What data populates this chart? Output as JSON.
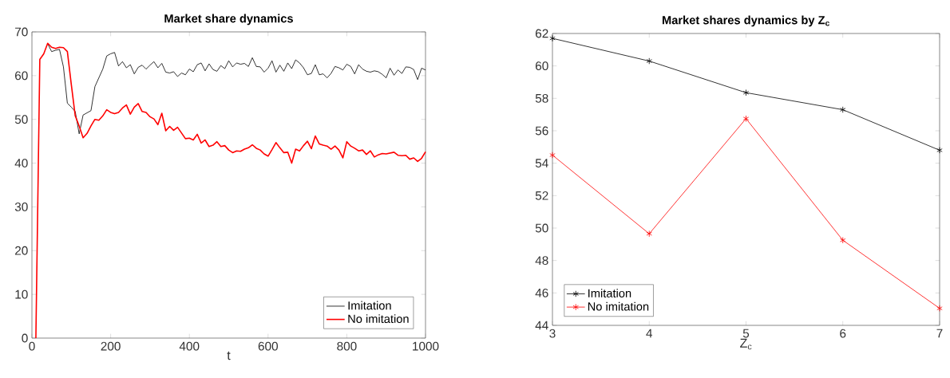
{
  "chart_data": [
    {
      "type": "line",
      "title": "Market share dynamics",
      "xlabel": "t",
      "xlim": [
        0,
        1000
      ],
      "ylim": [
        0,
        70
      ],
      "xticks": [
        0,
        200,
        400,
        600,
        800,
        1000
      ],
      "yticks": [
        0,
        10,
        20,
        30,
        40,
        50,
        60,
        70
      ],
      "legend": "bottom right",
      "marker": "none",
      "grid": false,
      "series": [
        {
          "name": "Imitation",
          "color": "#000000",
          "x": [
            40,
            50,
            60,
            70,
            80,
            90,
            100,
            110,
            120,
            130,
            150,
            160,
            180,
            190,
            200,
            210,
            220,
            230,
            240,
            250,
            260,
            270,
            280,
            290,
            300,
            310,
            320,
            330,
            340,
            350,
            360,
            370,
            380,
            390,
            400,
            410,
            420,
            430,
            440,
            450,
            460,
            470,
            480,
            490,
            500,
            510,
            520,
            530,
            540,
            550,
            560,
            570,
            580,
            590,
            600,
            610,
            620,
            630,
            640,
            650,
            660,
            670,
            680,
            690,
            700,
            710,
            720,
            730,
            740,
            750,
            760,
            770,
            780,
            790,
            800,
            810,
            820,
            830,
            840,
            850,
            860,
            870,
            880,
            890,
            900,
            910,
            920,
            930,
            940,
            950,
            960,
            970,
            980,
            990,
            1000
          ],
          "values": [
            67.3,
            65.5,
            65.8,
            66,
            62,
            53.7,
            52.8,
            51.8,
            46.7,
            51,
            52,
            57.5,
            61.5,
            64.5,
            65,
            65.3,
            62.2,
            63.2,
            61.8,
            62.5,
            60.4,
            61.9,
            62.4,
            61.5,
            62.4,
            63.2,
            61.8,
            62.8,
            60.8,
            60.6,
            60.9,
            59.8,
            60.6,
            60.2,
            61.5,
            60.9,
            62.5,
            62.9,
            61.1,
            62.7,
            61.4,
            61.0,
            62.3,
            61.6,
            63.4,
            62.0,
            62.9,
            62.6,
            62.8,
            62.1,
            64.1,
            62.1,
            62.0,
            60.8,
            61.7,
            63.4,
            60.8,
            62.4,
            61.0,
            62.9,
            61.6,
            63.6,
            62.9,
            61.8,
            60.2,
            60.5,
            62.5,
            60.2,
            60.4,
            59.5,
            60.5,
            62.1,
            61.8,
            61.3,
            62.6,
            62.1,
            60.4,
            62.5,
            61.5,
            61.0,
            60.8,
            61.1,
            60.9,
            60.3,
            59.5,
            61.7,
            60.1,
            61.3,
            60.5,
            62.0,
            61.9,
            61.4,
            59.1,
            61.7,
            61.3
          ]
        },
        {
          "name": "No imitation",
          "color": "#ff0000",
          "x": [
            10,
            20,
            30,
            40,
            50,
            60,
            70,
            80,
            90,
            100,
            110,
            120,
            130,
            140,
            150,
            160,
            170,
            180,
            190,
            200,
            210,
            220,
            230,
            240,
            250,
            260,
            270,
            280,
            290,
            300,
            310,
            320,
            330,
            340,
            350,
            360,
            370,
            380,
            390,
            400,
            410,
            420,
            430,
            440,
            450,
            460,
            470,
            480,
            490,
            500,
            510,
            520,
            530,
            540,
            550,
            560,
            570,
            580,
            590,
            600,
            610,
            620,
            630,
            640,
            650,
            660,
            670,
            680,
            690,
            700,
            710,
            720,
            730,
            740,
            750,
            760,
            770,
            780,
            790,
            800,
            810,
            820,
            830,
            840,
            850,
            860,
            870,
            880,
            890,
            900,
            910,
            920,
            930,
            940,
            950,
            960,
            970,
            980,
            990,
            1000
          ],
          "values": [
            0,
            63.7,
            65,
            67.4,
            66.5,
            66.2,
            66.5,
            66.4,
            65.5,
            58,
            50.8,
            48.5,
            45.8,
            46.8,
            48.5,
            50,
            49.8,
            50.8,
            52.2,
            51.6,
            51.3,
            51.6,
            52.6,
            53.3,
            51.2,
            52.8,
            53.6,
            51.8,
            51.6,
            50.6,
            50.1,
            48.8,
            51.4,
            47.4,
            48.4,
            47.5,
            48.2,
            46.9,
            45.6,
            45.7,
            45.3,
            46.6,
            44.6,
            45.3,
            43.8,
            44.1,
            44.9,
            43.8,
            44.0,
            43.0,
            42.4,
            42.8,
            42.7,
            43.2,
            43.5,
            44.2,
            43.4,
            43.0,
            42.1,
            41.6,
            43.1,
            44.7,
            43.5,
            42.4,
            42.5,
            40.0,
            43.2,
            42.8,
            44.0,
            45.0,
            43.3,
            46.2,
            44.4,
            44.1,
            43.9,
            43.2,
            43.9,
            43.0,
            41.2,
            44.9,
            43.9,
            43.4,
            42.8,
            43.0,
            42.0,
            42.8,
            41.4,
            41.9,
            42.2,
            42.1,
            42.3,
            42.5,
            41.8,
            41.7,
            41.8,
            40.9,
            41.2,
            40.4,
            41.1,
            42.6
          ]
        }
      ]
    },
    {
      "type": "line",
      "title": "Market shares dynamics by Z$_{c}$",
      "xlabel": "Z$_{c}$",
      "xlim": [
        3,
        7
      ],
      "ylim": [
        44,
        62
      ],
      "xticks": [
        3,
        4,
        5,
        6,
        7
      ],
      "yticks": [
        44,
        46,
        48,
        50,
        52,
        54,
        56,
        58,
        60,
        62
      ],
      "legend": "bottom left",
      "marker": "cross",
      "grid": false,
      "series": [
        {
          "name": "Imitation",
          "color": "#000000",
          "x": [
            3,
            4,
            5,
            6,
            7
          ],
          "values": [
            61.7,
            60.3,
            58.35,
            57.3,
            54.8
          ]
        },
        {
          "name": "No imitation",
          "color": "#ff0000",
          "x": [
            3,
            4,
            5,
            6,
            7
          ],
          "values": [
            54.5,
            49.65,
            56.75,
            49.25,
            45.05
          ]
        }
      ]
    }
  ]
}
